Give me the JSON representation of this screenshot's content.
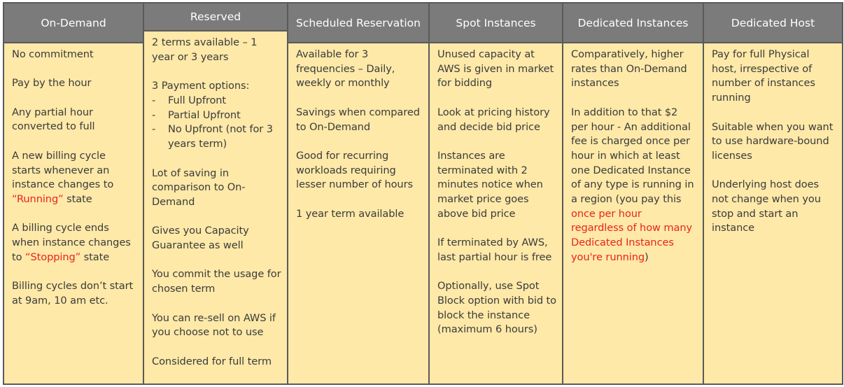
{
  "colors": {
    "header_bg": "#7b7b7b",
    "cell_bg": "#fee9a8",
    "text": "#3b3b3b",
    "highlight": "#e8241d"
  },
  "columns": [
    {
      "header": "On-Demand",
      "blocks": [
        {
          "p": [
            {
              "t": "No commitment"
            }
          ]
        },
        {
          "p": [
            {
              "t": "Pay by the hour"
            }
          ]
        },
        {
          "p": [
            {
              "t": "Any partial hour converted to full"
            }
          ]
        },
        {
          "p": [
            {
              "t": "A new billing cycle starts whenever an instance changes to "
            },
            {
              "t": "“Running”",
              "red": true
            },
            {
              "t": " state"
            }
          ]
        },
        {
          "p": [
            {
              "t": "A billing cycle ends when instance changes to "
            },
            {
              "t": "“Stopping”",
              "red": true
            },
            {
              "t": " state"
            }
          ]
        },
        {
          "p": [
            {
              "t": "Billing cycles don’t start at 9am, 10 am etc."
            }
          ]
        }
      ]
    },
    {
      "header": "Reserved",
      "blocks": [
        {
          "p": [
            {
              "t": "2 terms available – 1 year or 3 years"
            }
          ]
        },
        {
          "p": [
            {
              "t": "3 Payment options:"
            }
          ],
          "list": [
            "Full Upfront",
            "Partial Upfront",
            "No Upfront (not for 3 years term)"
          ]
        },
        {
          "p": [
            {
              "t": "Lot of saving in comparison to On-Demand"
            }
          ]
        },
        {
          "p": [
            {
              "t": "Gives you Capacity Guarantee as well"
            }
          ]
        },
        {
          "p": [
            {
              "t": "You commit the usage for chosen term"
            }
          ]
        },
        {
          "p": [
            {
              "t": "You can re-sell on AWS if you choose not to use"
            }
          ]
        },
        {
          "p": [
            {
              "t": "Considered for full term"
            }
          ]
        }
      ]
    },
    {
      "header": "Scheduled Reservation",
      "blocks": [
        {
          "p": [
            {
              "t": "Available for 3 frequencies – Daily, weekly or monthly"
            }
          ]
        },
        {
          "p": [
            {
              "t": "Savings when compared to On-Demand"
            }
          ]
        },
        {
          "p": [
            {
              "t": "Good for recurring workloads requiring lesser number of hours"
            }
          ]
        },
        {
          "p": [
            {
              "t": "1 year term available"
            }
          ]
        }
      ]
    },
    {
      "header": "Spot Instances",
      "blocks": [
        {
          "p": [
            {
              "t": "Unused capacity at AWS is given in market for bidding"
            }
          ]
        },
        {
          "p": [
            {
              "t": "Look at pricing history and decide bid price"
            }
          ]
        },
        {
          "p": [
            {
              "t": "Instances are terminated with 2 minutes notice when market price goes above bid price"
            }
          ]
        },
        {
          "p": [
            {
              "t": "If terminated by AWS, last partial hour is free"
            }
          ]
        },
        {
          "p": [
            {
              "t": "Optionally, use Spot Block option with bid to block the instance (maximum 6 hours)"
            }
          ]
        }
      ]
    },
    {
      "header": "Dedicated Instances",
      "blocks": [
        {
          "p": [
            {
              "t": "Comparatively, higher rates than On-Demand instances"
            }
          ]
        },
        {
          "p": [
            {
              "t": "In addition to that $2 per hour - An additional fee is charged once per hour in which at least one Dedicated Instance of any type is running in a region (you pay this "
            },
            {
              "t": "once per hour regardless of how many Dedicated Instances you're running",
              "red": true
            },
            {
              "t": ")"
            }
          ]
        }
      ]
    },
    {
      "header": "Dedicated Host",
      "blocks": [
        {
          "p": [
            {
              "t": "Pay for full Physical host, irrespective of number of instances running"
            }
          ]
        },
        {
          "p": [
            {
              "t": "Suitable when you want to use hardware-bound licenses"
            }
          ]
        },
        {
          "p": [
            {
              "t": "Underlying host does not change when you stop and start an instance"
            }
          ]
        }
      ]
    }
  ]
}
